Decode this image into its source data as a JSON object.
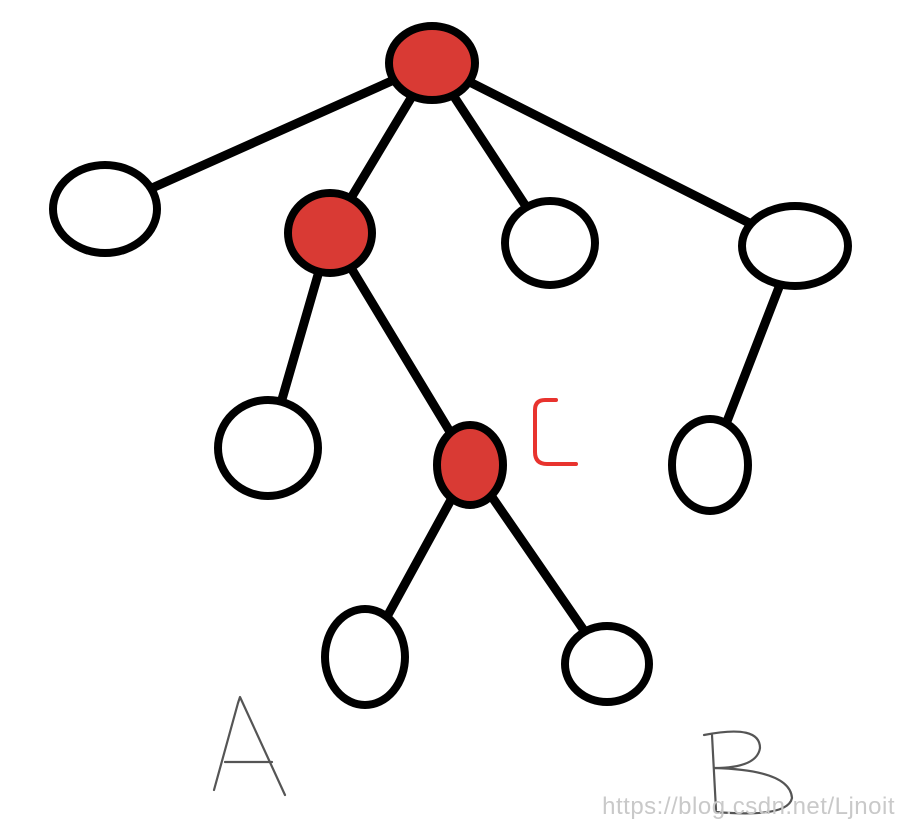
{
  "diagram": {
    "colors": {
      "highlight": "#d93a34",
      "plain": "#ffffff",
      "stroke": "#000000",
      "label_c": "#e8332e",
      "letters": "#555555"
    },
    "nodes": [
      {
        "id": "root",
        "highlighted": true
      },
      {
        "id": "n-left",
        "highlighted": false
      },
      {
        "id": "n-mid",
        "highlighted": true
      },
      {
        "id": "n-center",
        "highlighted": false
      },
      {
        "id": "n-right",
        "highlighted": false
      },
      {
        "id": "n-mid-left",
        "highlighted": false
      },
      {
        "id": "n-c",
        "highlighted": true
      },
      {
        "id": "n-right-child",
        "highlighted": false
      },
      {
        "id": "leaf-a",
        "highlighted": false
      },
      {
        "id": "leaf-b",
        "highlighted": false
      }
    ],
    "edges": [
      [
        "root",
        "n-left"
      ],
      [
        "root",
        "n-mid"
      ],
      [
        "root",
        "n-center"
      ],
      [
        "root",
        "n-right"
      ],
      [
        "n-mid",
        "n-mid-left"
      ],
      [
        "n-mid",
        "n-c"
      ],
      [
        "n-right",
        "n-right-child"
      ],
      [
        "n-c",
        "leaf-a"
      ],
      [
        "n-c",
        "leaf-b"
      ]
    ],
    "labels": {
      "c": "C",
      "a": "A",
      "b": "B"
    }
  },
  "watermark": "https://blog.csdn.net/Ljnoit"
}
